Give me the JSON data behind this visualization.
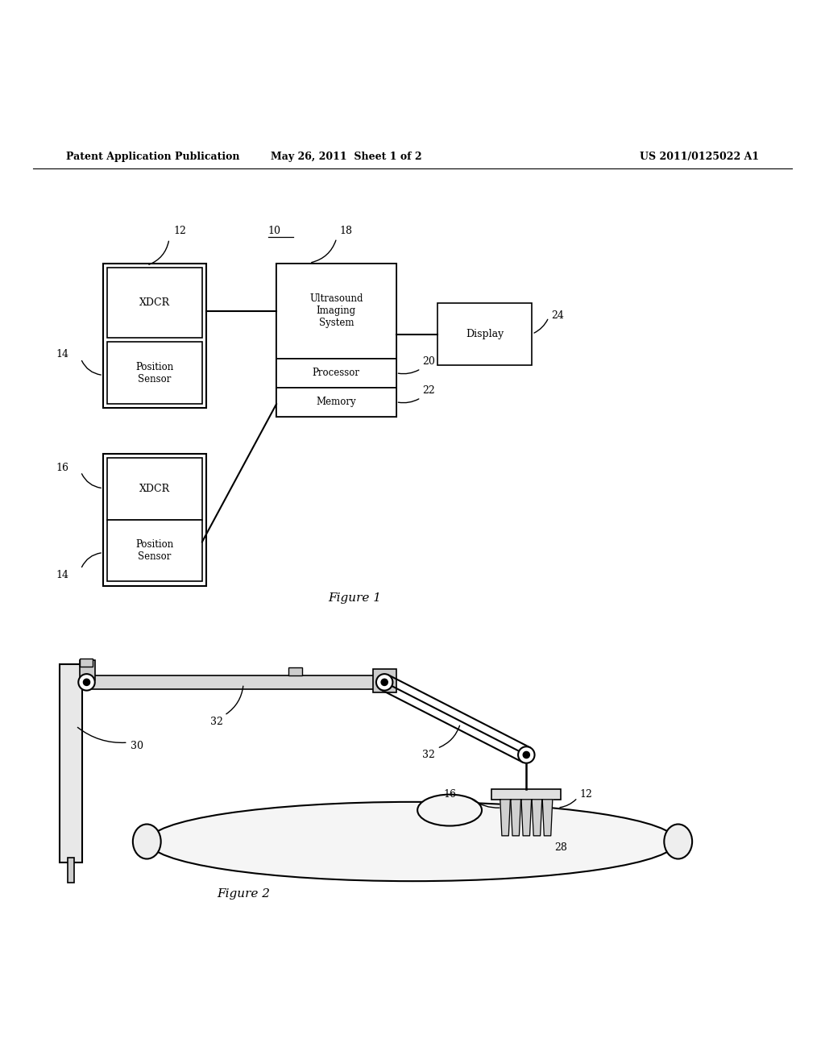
{
  "header_left": "Patent Application Publication",
  "header_mid": "May 26, 2011  Sheet 1 of 2",
  "header_right": "US 2011/0125022 A1",
  "figure1_caption": "Figure 1",
  "figure2_caption": "Figure 2",
  "bg_color": "#ffffff",
  "line_color": "#000000",
  "text_color": "#000000"
}
